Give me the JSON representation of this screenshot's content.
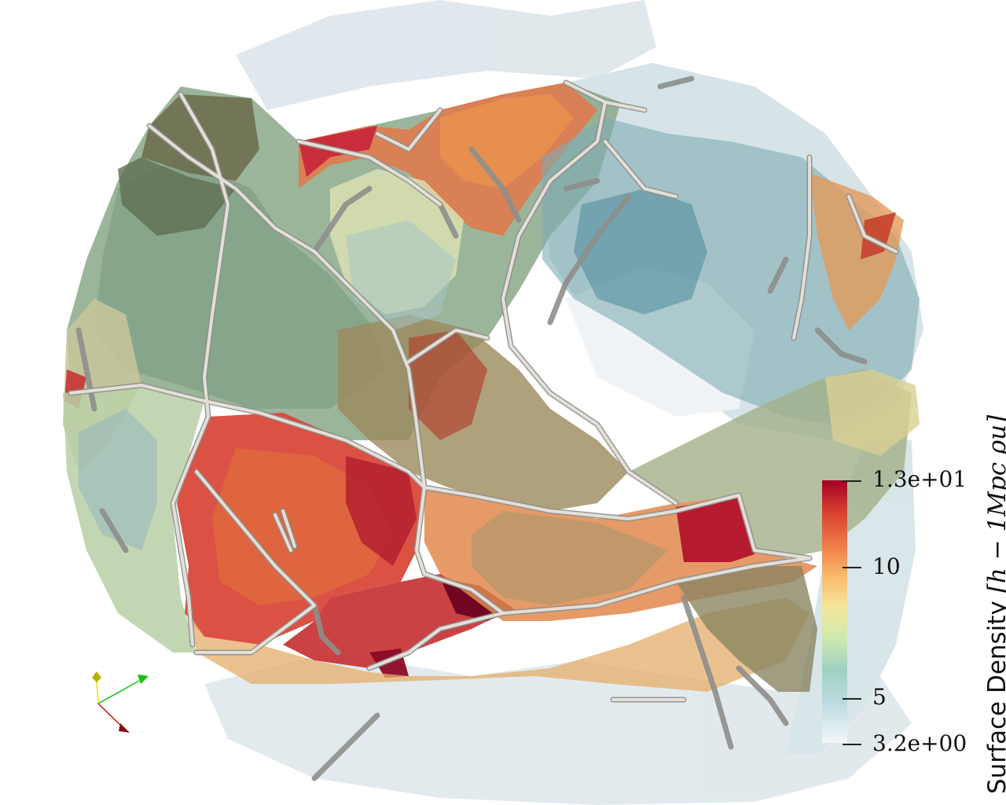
{
  "colorbar": {
    "title": "Surface Density ",
    "unit": "[h − 1Mpc ρu]",
    "ticks": [
      {
        "label": "1.3e+01"
      },
      {
        "label": "10"
      },
      {
        "label": "5"
      },
      {
        "label": "3.2e+00"
      }
    ],
    "colormap": [
      "#a50026",
      "#d7402f",
      "#f07c4a",
      "#f9b86a",
      "#f5e59a",
      "#cfe9b0",
      "#9fd0c0",
      "#bcdbe1",
      "#f4f7f9"
    ]
  },
  "orientation_axes": {
    "x_color": "#c0181e",
    "y_color": "#e8e000",
    "z_color": "#12c20e"
  }
}
